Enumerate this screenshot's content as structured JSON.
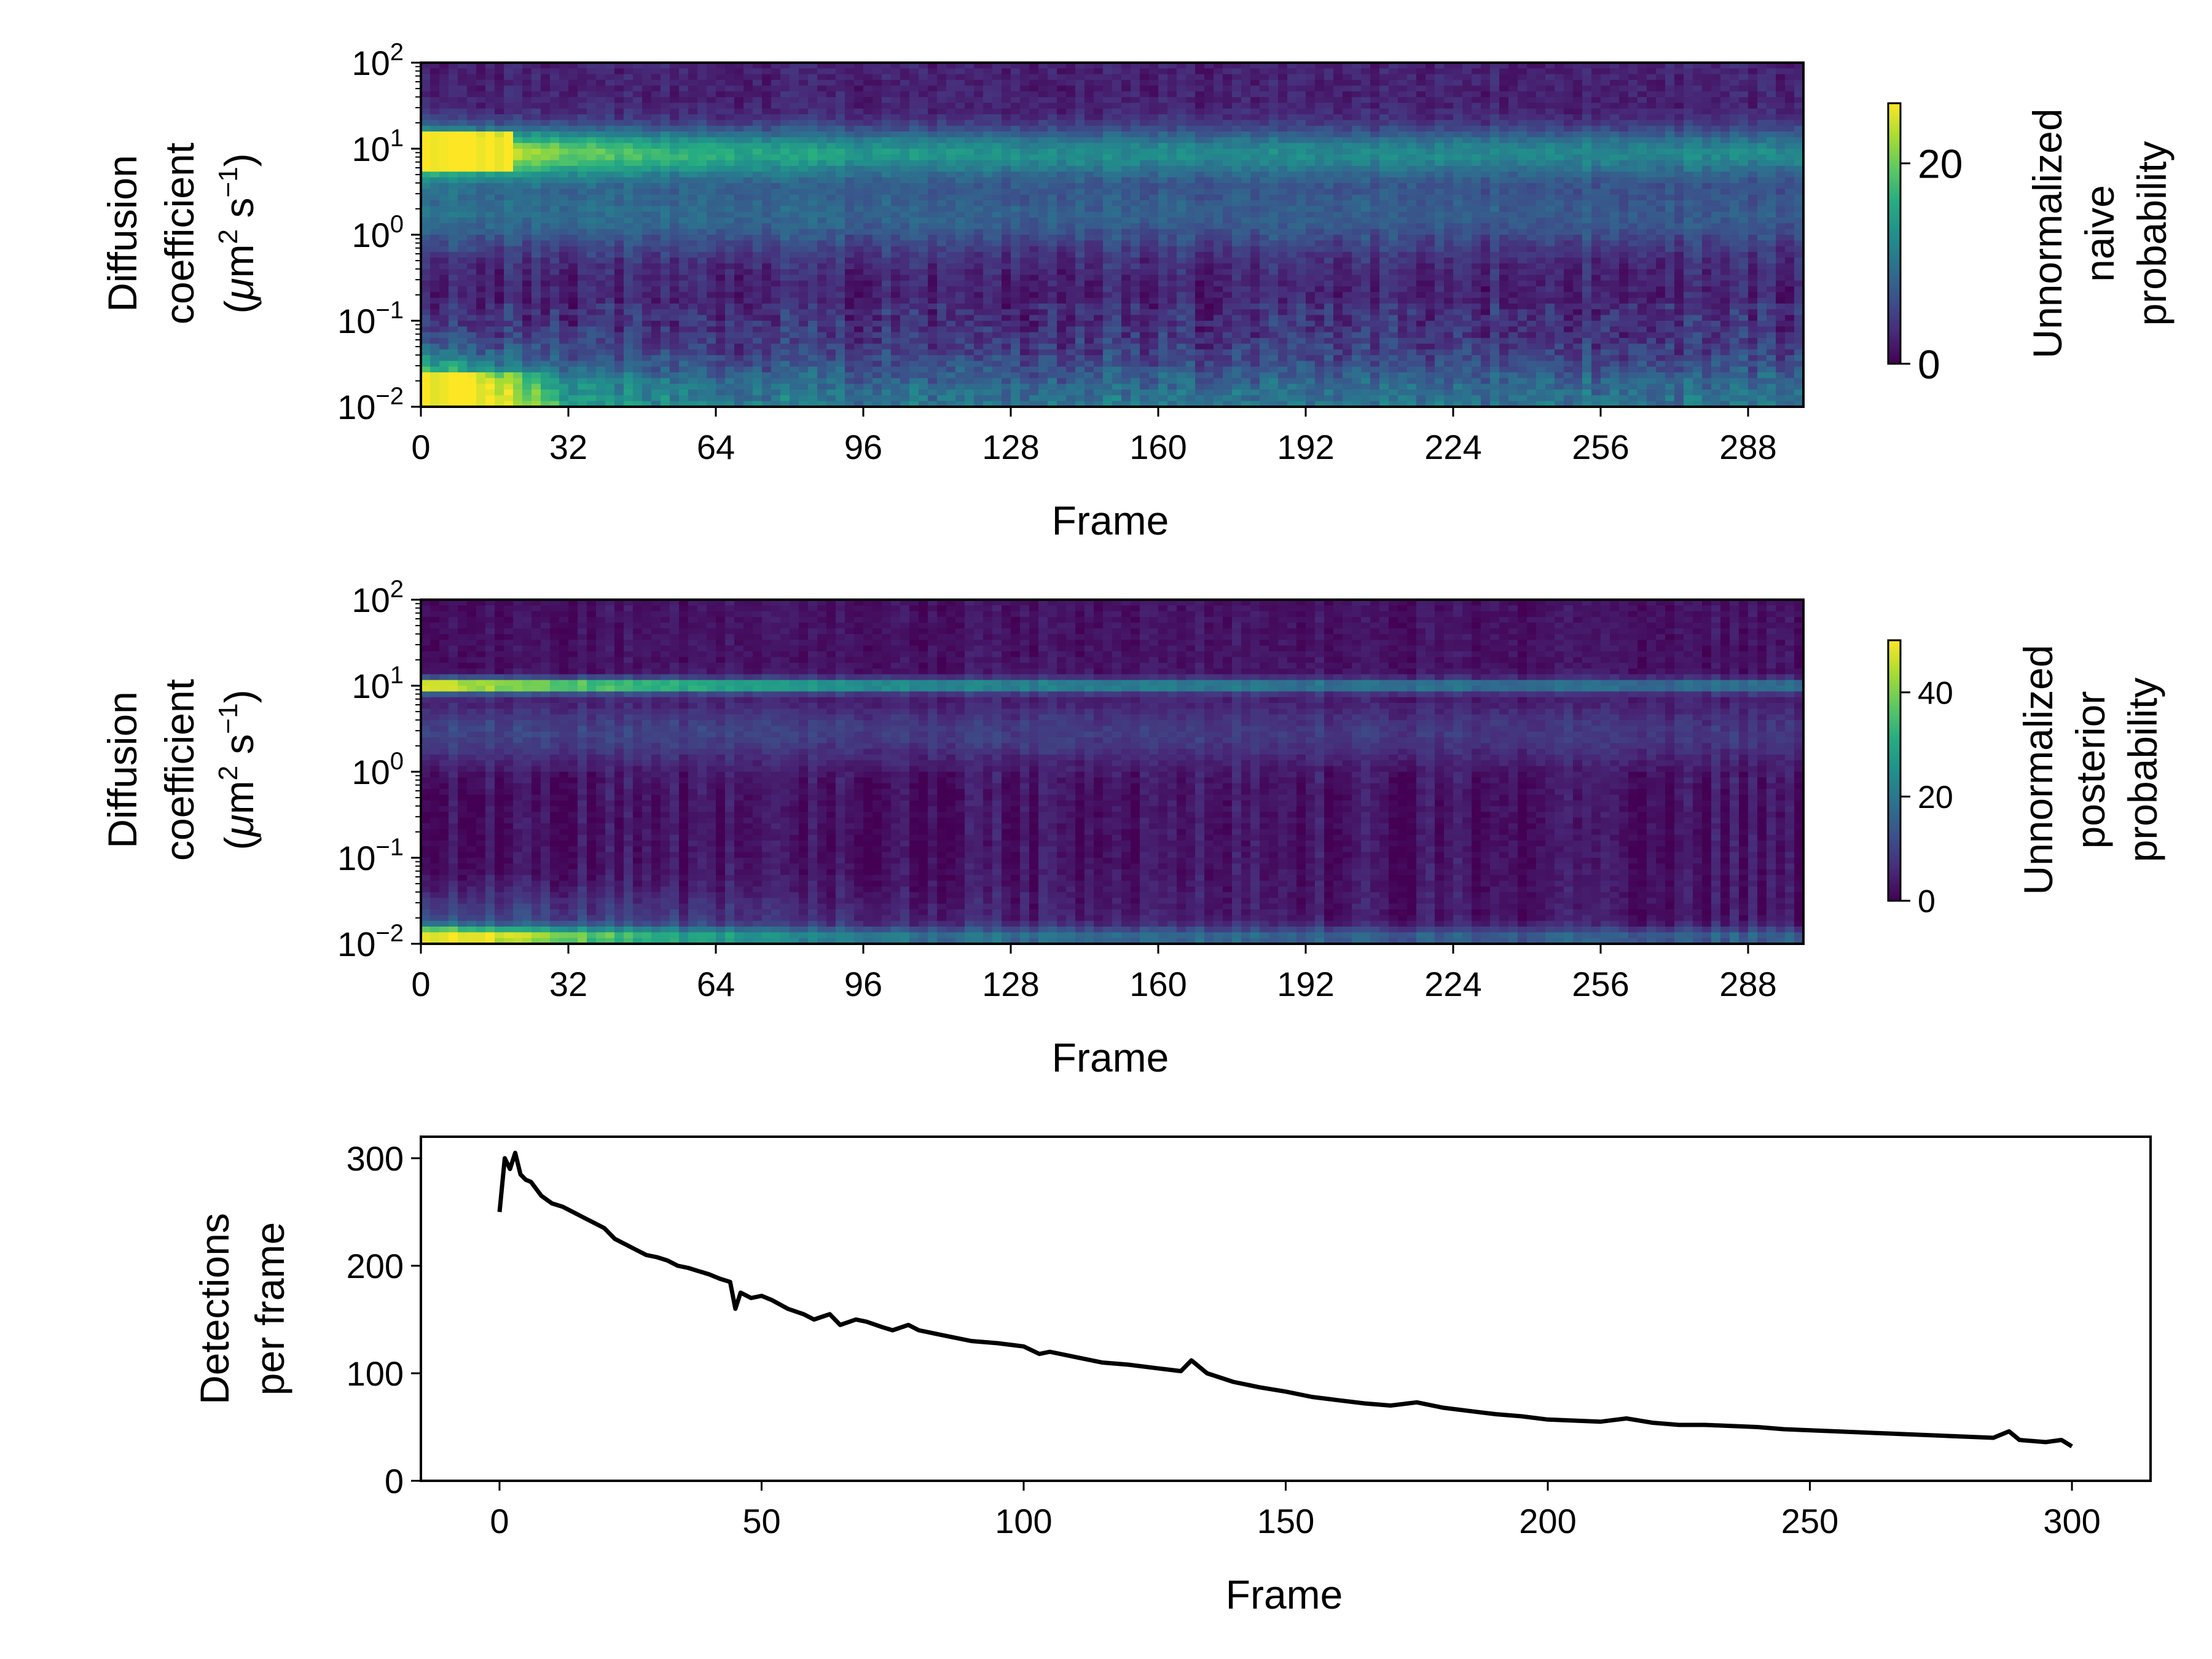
{
  "chart_data": [
    {
      "type": "heatmap",
      "xlabel": "Frame",
      "ylabel_lines": [
        "Diffusion",
        "coefficient"
      ],
      "ylabel_unit": {
        "prefix": "(",
        "mu": "μ",
        "m": "m",
        "sq": "2",
        "s": " s",
        "inv": "−1",
        "suffix": ")"
      },
      "xticks": [
        0,
        32,
        64,
        96,
        128,
        160,
        192,
        224,
        256,
        288
      ],
      "xlim": [
        0,
        300
      ],
      "yscale": "log",
      "ylim": [
        0.01,
        100
      ],
      "yticks": [
        {
          "base": "10",
          "exp": "2"
        },
        {
          "base": "10",
          "exp": "1"
        },
        {
          "base": "10",
          "exp": "0"
        },
        {
          "base": "10",
          "exp": "−1"
        },
        {
          "base": "10",
          "exp": "−2"
        }
      ],
      "colormap": "viridis",
      "colorbar_label": [
        "Unnormalized",
        "naive",
        "probability"
      ],
      "colorbar_ticks": [
        20,
        0
      ],
      "colorbar_range": [
        0,
        26
      ],
      "features": {
        "upper_band_center_log10D": 0.95,
        "upper_band_peak_frames": [
          0,
          20
        ],
        "lower_band_peak_frames": [
          0,
          32
        ],
        "trend": "intensity decays with frame"
      }
    },
    {
      "type": "heatmap",
      "xlabel": "Frame",
      "ylabel_lines": [
        "Diffusion",
        "coefficient"
      ],
      "ylabel_unit": {
        "prefix": "(",
        "mu": "μ",
        "m": "m",
        "sq": "2",
        "s": " s",
        "inv": "−1",
        "suffix": ")"
      },
      "xticks": [
        0,
        32,
        64,
        96,
        128,
        160,
        192,
        224,
        256,
        288
      ],
      "xlim": [
        0,
        300
      ],
      "yscale": "log",
      "ylim": [
        0.01,
        100
      ],
      "yticks": [
        {
          "base": "10",
          "exp": "2"
        },
        {
          "base": "10",
          "exp": "1"
        },
        {
          "base": "10",
          "exp": "0"
        },
        {
          "base": "10",
          "exp": "−1"
        },
        {
          "base": "10",
          "exp": "−2"
        }
      ],
      "colormap": "viridis",
      "colorbar_label": [
        "Unnormalized",
        "posterior",
        "probability"
      ],
      "colorbar_ticks": [
        40,
        20,
        0
      ],
      "colorbar_range": [
        0,
        50
      ],
      "features": {
        "upper_band_center_log10D": 1.0,
        "upper_band_peak_frames": [
          0,
          60
        ],
        "lower_band_peak_frames": [
          0,
          40
        ],
        "trend": "narrow bands, intensity decays with frame"
      }
    },
    {
      "type": "line",
      "xlabel": "Frame",
      "ylabel_lines": [
        "Detections",
        "per frame"
      ],
      "xticks": [
        0,
        50,
        100,
        150,
        200,
        250,
        300
      ],
      "yticks": [
        0,
        100,
        200,
        300
      ],
      "xlim": [
        -15,
        315
      ],
      "ylim": [
        0,
        320
      ],
      "color": "#000000",
      "series": [
        {
          "x": [
            0,
            1,
            2,
            3,
            4,
            5,
            6,
            8,
            10,
            12,
            14,
            16,
            18,
            20,
            22,
            24,
            26,
            28,
            30,
            32,
            34,
            36,
            38,
            40,
            42,
            44,
            45,
            46,
            48,
            50,
            52,
            55,
            58,
            60,
            63,
            65,
            68,
            70,
            73,
            75,
            78,
            80,
            85,
            90,
            95,
            100,
            103,
            105,
            110,
            115,
            120,
            125,
            130,
            132,
            135,
            140,
            145,
            150,
            155,
            160,
            165,
            170,
            175,
            180,
            185,
            190,
            195,
            200,
            205,
            210,
            215,
            220,
            225,
            230,
            235,
            240,
            245,
            250,
            255,
            260,
            265,
            270,
            275,
            280,
            285,
            288,
            290,
            295,
            298,
            300
          ],
          "y": [
            250,
            300,
            290,
            305,
            285,
            280,
            278,
            265,
            258,
            255,
            250,
            245,
            240,
            235,
            225,
            220,
            215,
            210,
            208,
            205,
            200,
            198,
            195,
            192,
            188,
            185,
            160,
            175,
            170,
            172,
            168,
            160,
            155,
            150,
            155,
            145,
            150,
            148,
            143,
            140,
            145,
            140,
            135,
            130,
            128,
            125,
            118,
            120,
            115,
            110,
            108,
            105,
            102,
            112,
            100,
            92,
            87,
            83,
            78,
            75,
            72,
            70,
            73,
            68,
            65,
            62,
            60,
            57,
            56,
            55,
            58,
            54,
            52,
            52,
            51,
            50,
            48,
            47,
            46,
            45,
            44,
            43,
            42,
            41,
            40,
            46,
            38,
            36,
            38,
            32
          ]
        }
      ]
    }
  ]
}
